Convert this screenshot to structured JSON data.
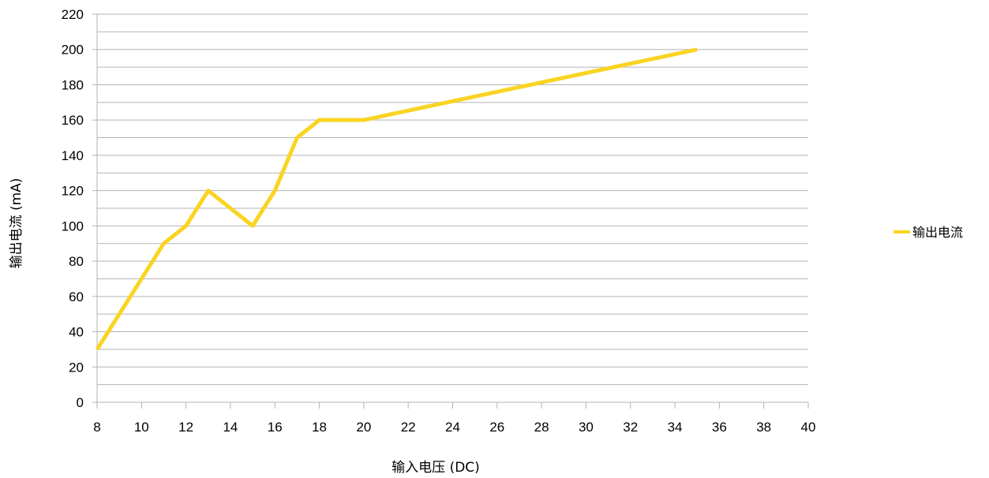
{
  "chart_data": {
    "type": "line",
    "xlabel": "输入电压 (DC)",
    "ylabel": "输出电流 (mA)",
    "xlim": [
      8,
      40
    ],
    "ylim": [
      0,
      220
    ],
    "x_ticks": [
      8,
      10,
      12,
      14,
      16,
      18,
      20,
      22,
      24,
      26,
      28,
      30,
      32,
      34,
      36,
      38,
      40
    ],
    "y_ticks": [
      0,
      20,
      40,
      60,
      80,
      100,
      120,
      140,
      160,
      180,
      200,
      220
    ],
    "grid": true,
    "legend_position": "right",
    "series": [
      {
        "name": "输出电流",
        "color": "#F9D423",
        "x": [
          8,
          11,
          12,
          13,
          15,
          16,
          17,
          18,
          20,
          35
        ],
        "y": [
          30,
          90,
          100,
          120,
          100,
          120,
          150,
          160,
          160,
          200
        ]
      }
    ]
  }
}
